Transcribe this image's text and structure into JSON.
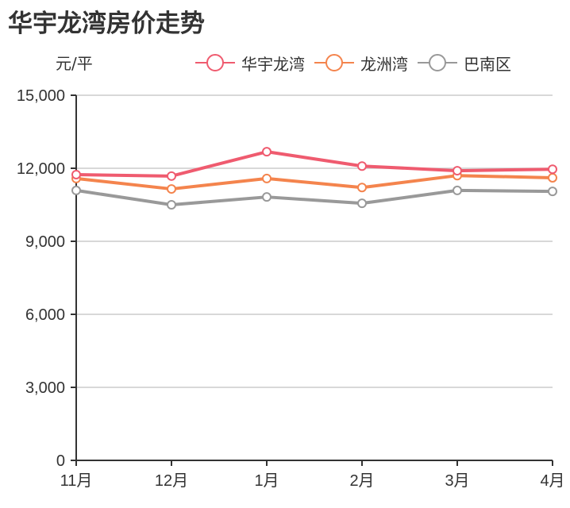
{
  "title": "华宇龙湾房价走势",
  "y_unit": "元/平",
  "legend": [
    {
      "label": "华宇龙湾",
      "color": "#ef5b6f"
    },
    {
      "label": "龙洲湾",
      "color": "#f4844d"
    },
    {
      "label": "巴南区",
      "color": "#999999"
    }
  ],
  "chart_data": {
    "type": "line",
    "title": "华宇龙湾房价走势",
    "xlabel": "",
    "ylabel": "元/平",
    "categories": [
      "11月",
      "12月",
      "1月",
      "2月",
      "3月",
      "4月"
    ],
    "ylim": [
      0,
      15000
    ],
    "yticks": [
      0,
      3000,
      6000,
      9000,
      12000,
      15000
    ],
    "ytick_labels": [
      "0",
      "3,000",
      "6,000",
      "9,000",
      "12,000",
      "15,000"
    ],
    "grid": true,
    "legend_position": "top-right",
    "series": [
      {
        "name": "华宇龙湾",
        "color": "#ef5b6f",
        "values": [
          11740,
          11680,
          12680,
          12090,
          11900,
          11960
        ]
      },
      {
        "name": "龙洲湾",
        "color": "#f4844d",
        "values": [
          11580,
          11150,
          11580,
          11210,
          11700,
          11610
        ]
      },
      {
        "name": "巴南区",
        "color": "#999999",
        "values": [
          11090,
          10500,
          10820,
          10560,
          11090,
          11050
        ]
      }
    ]
  }
}
